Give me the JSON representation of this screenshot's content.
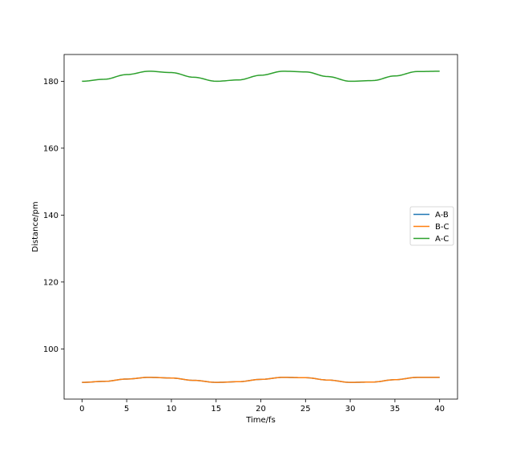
{
  "chart_data": {
    "type": "line",
    "title": "",
    "xlabel": "Time/fs",
    "ylabel": "Distance/pm",
    "xlim": [
      -2,
      42
    ],
    "ylim": [
      85,
      188
    ],
    "xticks": [
      0,
      5,
      10,
      15,
      20,
      25,
      30,
      35,
      40
    ],
    "yticks": [
      100,
      120,
      140,
      160,
      180
    ],
    "grid": false,
    "legend_position": "center-right",
    "series": [
      {
        "name": "A-B",
        "color": "#1f77b4",
        "x": [
          0,
          2.5,
          5,
          7.5,
          10,
          12.5,
          15,
          17.5,
          20,
          22.5,
          25,
          27.5,
          30,
          32.5,
          35,
          37.5,
          40
        ],
        "y": [
          90.0,
          90.3,
          91.0,
          91.5,
          91.3,
          90.6,
          90.0,
          90.2,
          90.9,
          91.5,
          91.4,
          90.7,
          90.0,
          90.1,
          90.8,
          91.5,
          91.5
        ]
      },
      {
        "name": "B-C",
        "color": "#ff7f0e",
        "x": [
          0,
          2.5,
          5,
          7.5,
          10,
          12.5,
          15,
          17.5,
          20,
          22.5,
          25,
          27.5,
          30,
          32.5,
          35,
          37.5,
          40
        ],
        "y": [
          90.0,
          90.3,
          91.0,
          91.5,
          91.3,
          90.6,
          90.0,
          90.2,
          90.9,
          91.5,
          91.4,
          90.7,
          90.0,
          90.1,
          90.8,
          91.5,
          91.5
        ]
      },
      {
        "name": "A-C",
        "color": "#2ca02c",
        "x": [
          0,
          2.5,
          5,
          7.5,
          10,
          12.5,
          15,
          17.5,
          20,
          22.5,
          25,
          27.5,
          30,
          32.5,
          35,
          37.5,
          40
        ],
        "y": [
          180.0,
          180.6,
          182.0,
          183.0,
          182.6,
          181.2,
          180.0,
          180.4,
          181.8,
          183.0,
          182.8,
          181.4,
          180.0,
          180.2,
          181.6,
          182.9,
          183.0
        ]
      }
    ]
  }
}
